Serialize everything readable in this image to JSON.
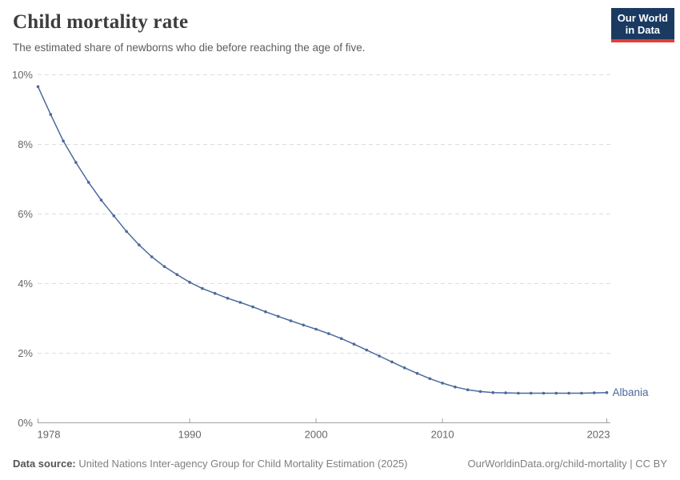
{
  "header": {
    "title": "Child mortality rate",
    "subtitle": "The estimated share of newborns who die before reaching the age of five."
  },
  "logo": {
    "line1": "Our World",
    "line2": "in Data"
  },
  "footer": {
    "source_label": "Data source:",
    "source_text": " United Nations Inter-agency Group for Child Mortality Estimation (2025)",
    "credit": "OurWorldinData.org/child-mortality | CC BY"
  },
  "colors": {
    "line": "#4c6a9c",
    "grid": "#dddddd",
    "axis": "#a1a1a1",
    "tick_text": "#666666",
    "logo_bg": "#1a3a62",
    "logo_red": "#e23d33"
  },
  "chart_data": {
    "type": "line",
    "title": "Child mortality rate",
    "entity": "Albania",
    "unit": "%",
    "grid": true,
    "legend_position": "end-of-line",
    "xlim": [
      1978,
      2023
    ],
    "ylim": [
      0,
      10
    ],
    "xticks": [
      1978,
      1990,
      2000,
      2010,
      2023
    ],
    "yticks": [
      0,
      2,
      4,
      6,
      8,
      10
    ],
    "x": [
      1978,
      1979,
      1980,
      1981,
      1982,
      1983,
      1984,
      1985,
      1986,
      1987,
      1988,
      1989,
      1990,
      1991,
      1992,
      1993,
      1994,
      1995,
      1996,
      1997,
      1998,
      1999,
      2000,
      2001,
      2002,
      2003,
      2004,
      2005,
      2006,
      2007,
      2008,
      2009,
      2010,
      2011,
      2012,
      2013,
      2014,
      2015,
      2016,
      2017,
      2018,
      2019,
      2020,
      2021,
      2022,
      2023
    ],
    "values": [
      9.66,
      8.86,
      8.1,
      7.48,
      6.91,
      6.4,
      5.95,
      5.5,
      5.11,
      4.77,
      4.49,
      4.26,
      4.04,
      3.86,
      3.72,
      3.58,
      3.46,
      3.33,
      3.19,
      3.06,
      2.93,
      2.81,
      2.69,
      2.56,
      2.42,
      2.26,
      2.09,
      1.92,
      1.75,
      1.58,
      1.42,
      1.27,
      1.14,
      1.03,
      0.95,
      0.9,
      0.87,
      0.86,
      0.85,
      0.85,
      0.85,
      0.85,
      0.85,
      0.85,
      0.86,
      0.87
    ]
  }
}
